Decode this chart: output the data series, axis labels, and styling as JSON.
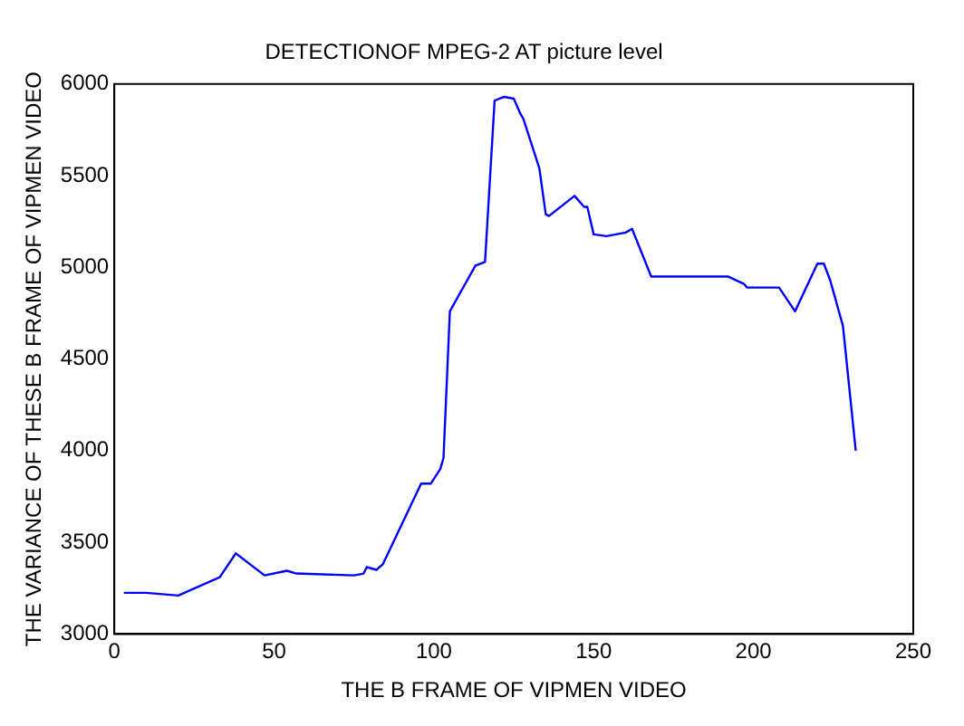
{
  "chart_data": {
    "type": "line",
    "title": "DETECTIONOF MPEG-2 AT picture level",
    "xlabel": "THE B FRAME OF VIPMEN VIDEO",
    "ylabel": "THE VARIANCE OF THESE B FRAME OF VIPMEN VIDEO",
    "x": [
      3,
      10,
      20,
      33,
      38,
      47,
      54,
      57,
      75,
      78,
      79,
      82,
      84,
      96,
      99,
      102,
      103,
      105,
      113,
      116,
      119,
      122,
      125,
      127,
      128,
      133,
      135,
      136,
      144,
      147,
      148,
      150,
      154,
      160,
      162,
      168,
      192,
      197,
      198,
      208,
      213,
      220,
      222,
      224,
      228,
      232
    ],
    "series": [
      {
        "color": "#0000ff",
        "values": [
          3225,
          3225,
          3210,
          3310,
          3440,
          3320,
          3345,
          3330,
          3320,
          3330,
          3365,
          3350,
          3380,
          3820,
          3820,
          3900,
          3960,
          4760,
          5010,
          5030,
          5910,
          5930,
          5920,
          5840,
          5810,
          5540,
          5290,
          5280,
          5390,
          5330,
          5330,
          5180,
          5170,
          5190,
          5210,
          4950,
          4950,
          4910,
          4890,
          4890,
          4760,
          5020,
          5020,
          4930,
          4680,
          4000
        ]
      }
    ],
    "xlim": [
      0,
      250
    ],
    "xticks": [
      0,
      50,
      100,
      150,
      200,
      250
    ],
    "ylim": [
      3000,
      6000
    ],
    "yticks": [
      3000,
      3500,
      4000,
      4500,
      5000,
      5500,
      6000
    ],
    "grid": false,
    "legend": false,
    "marker": "none",
    "line_style": "solid"
  }
}
